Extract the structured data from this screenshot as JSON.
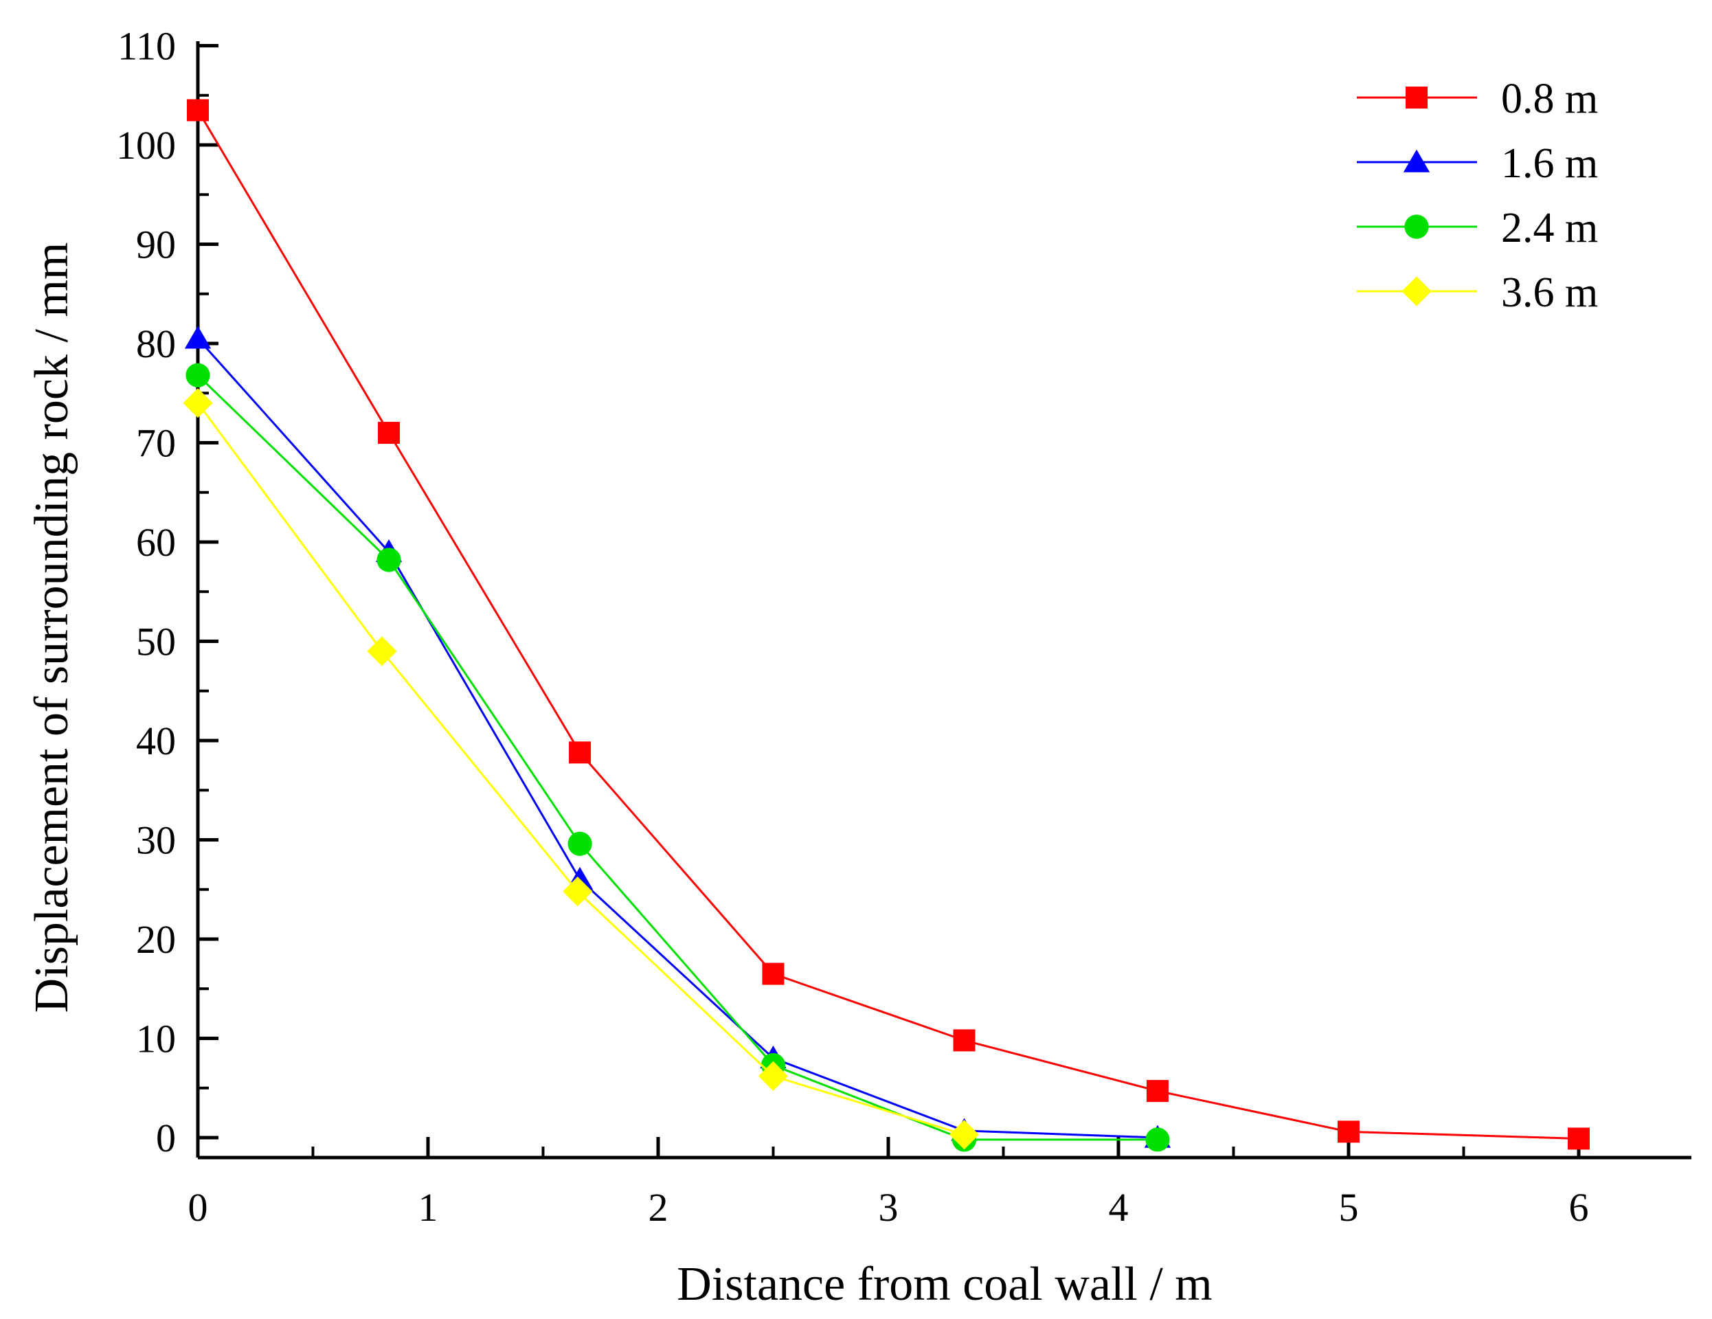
{
  "chart_data": {
    "type": "line",
    "title": "",
    "xlabel": "Distance from coal wall / m",
    "ylabel": "Displacement of surrounding rock / mm",
    "xlim": [
      0,
      6.5
    ],
    "ylim": [
      -2,
      110
    ],
    "x_ticks": [
      0,
      1,
      2,
      3,
      4,
      5,
      6
    ],
    "y_ticks": [
      0,
      10,
      20,
      30,
      40,
      50,
      60,
      70,
      80,
      90,
      100,
      110
    ],
    "grid": false,
    "legend_position": "top-right",
    "series": [
      {
        "name": "0.8 m",
        "color": "#ff0000",
        "marker": "square",
        "x": [
          0,
          0.83,
          1.66,
          2.5,
          3.33,
          4.17,
          5.0,
          6.0
        ],
        "values": [
          103.5,
          71,
          38.8,
          16.5,
          9.8,
          4.7,
          0.6,
          -0.1
        ]
      },
      {
        "name": "1.6 m",
        "color": "#0000ff",
        "marker": "triangle",
        "x": [
          0,
          0.83,
          1.66,
          2.5,
          3.33,
          4.17
        ],
        "values": [
          80.5,
          59,
          26,
          8,
          0.7,
          0
        ]
      },
      {
        "name": "2.4 m",
        "color": "#00e000",
        "marker": "circle",
        "x": [
          0,
          0.83,
          1.66,
          2.5,
          3.33,
          4.17
        ],
        "values": [
          76.8,
          58.2,
          29.6,
          7.3,
          -0.2,
          -0.2
        ]
      },
      {
        "name": "3.6 m",
        "color": "#ffff00",
        "marker": "diamond",
        "x": [
          0,
          0.8,
          1.65,
          2.5,
          3.33
        ],
        "values": [
          74,
          49,
          24.8,
          6.2,
          0.3
        ]
      }
    ]
  }
}
